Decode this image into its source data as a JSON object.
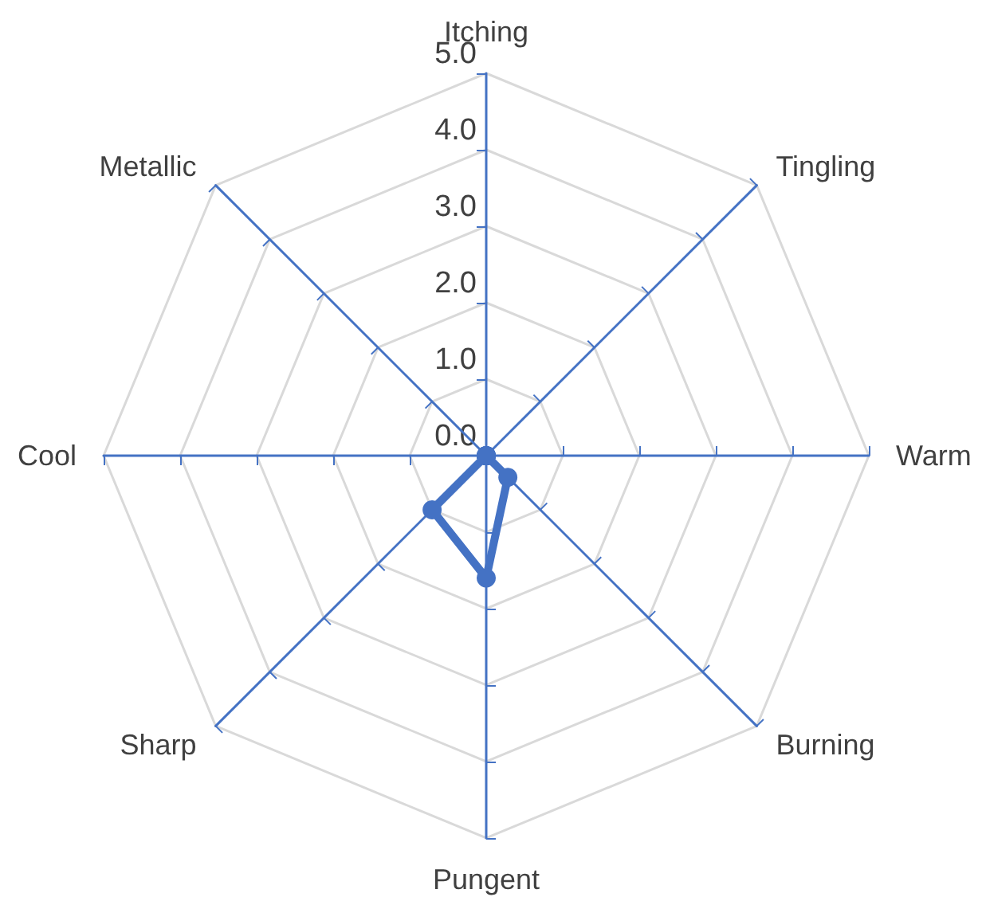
{
  "chart_data": {
    "type": "radar",
    "categories": [
      "Itching",
      "Tingling",
      "Warm",
      "Burning",
      "Pungent",
      "Sharp",
      "Cool",
      "Metallic"
    ],
    "series": [
      {
        "color": "#4472c4",
        "values": [
          0,
          0,
          0,
          0.4,
          1.6,
          1.0,
          0,
          0
        ]
      }
    ],
    "ylim": [
      0,
      5
    ],
    "yticks": [
      {
        "value": 0,
        "label": "0.0"
      },
      {
        "value": 1,
        "label": "1.0"
      },
      {
        "value": 2,
        "label": "2.0"
      },
      {
        "value": 3,
        "label": "3.0"
      },
      {
        "value": 4,
        "label": "4.0"
      },
      {
        "value": 5,
        "label": "5.0"
      }
    ],
    "grid": true,
    "marker": "circle"
  }
}
